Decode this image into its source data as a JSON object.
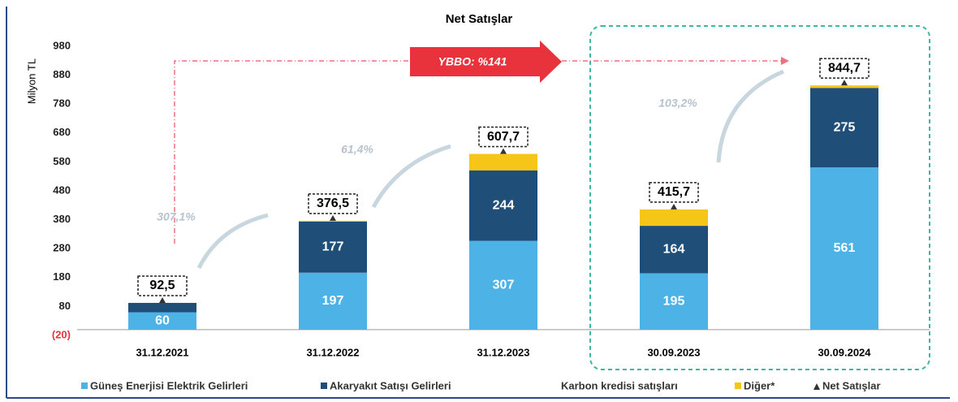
{
  "chart_data": {
    "type": "bar",
    "stacked": true,
    "title": "Net Satışlar",
    "y_label": "Milyon TL",
    "categories": [
      "31.12.2021",
      "31.12.2022",
      "31.12.2023",
      "30.09.2023",
      "30.09.2024"
    ],
    "series": [
      {
        "name": "Güneş Enerjisi Elektrik Gelirleri",
        "color": "#4db3e6",
        "values": [
          60,
          197,
          307,
          195,
          561
        ]
      },
      {
        "name": "Akaryakıt Satışı Gelirleri",
        "color": "#1f4e79",
        "values": [
          32.5,
          177,
          244,
          164,
          275
        ],
        "value_labels": [
          null,
          "177",
          "244",
          "164",
          "275"
        ]
      },
      {
        "name": "Karbon kredisi satışları",
        "color": "#ffffff",
        "values": [
          0,
          0,
          0,
          0,
          0
        ]
      },
      {
        "name": "Diğer*",
        "color": "#f5c518",
        "values": [
          0,
          2.5,
          56.7,
          56.7,
          8.7
        ]
      }
    ],
    "total": {
      "name": "Net Satışlar",
      "values": [
        92.5,
        376.5,
        607.7,
        415.7,
        844.7
      ],
      "value_labels": [
        "92,5",
        "376,5",
        "607,7",
        "415,7",
        "844,7"
      ]
    },
    "ylim": [
      -20,
      980
    ],
    "yticks": [
      {
        "value": -20,
        "label": "(20)"
      },
      80,
      180,
      280,
      380,
      480,
      580,
      680,
      780,
      880,
      980
    ],
    "annotations": [
      "YBBO: %141",
      "307,1%",
      "61,4%",
      "103,2%"
    ]
  }
}
